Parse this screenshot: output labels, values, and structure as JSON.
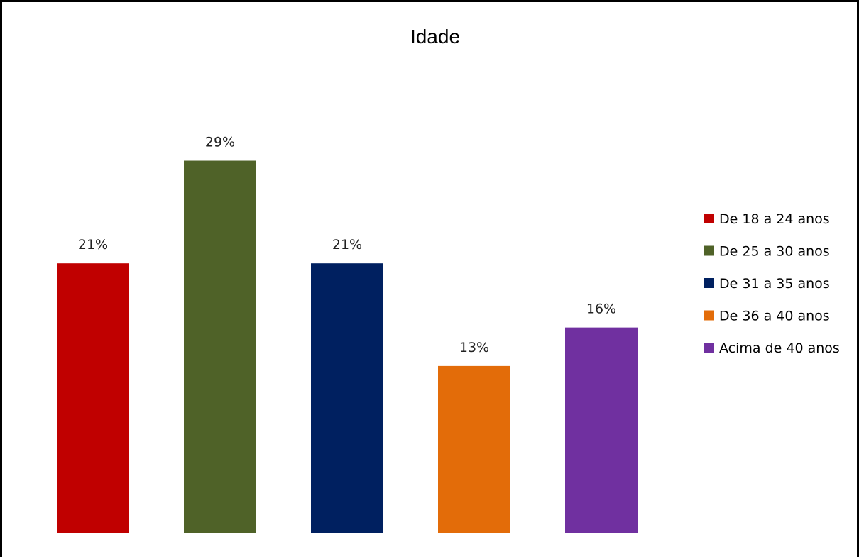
{
  "chart_data": {
    "type": "bar",
    "title": "Idade",
    "categories": [
      "De 18 a 24 anos",
      "De 25 a 30 anos",
      "De 31 a 35 anos",
      "De 36 a 40 anos",
      "Acima de 40 anos"
    ],
    "values": [
      21,
      29,
      21,
      13,
      16
    ],
    "value_labels": [
      "21%",
      "29%",
      "21%",
      "13%",
      "16%"
    ],
    "colors": [
      "#c00000",
      "#4f6228",
      "#002060",
      "#e36c09",
      "#7030a0"
    ],
    "legend": {
      "position": "right",
      "entries": [
        "De 18 a 24 anos",
        "De 25 a 30 anos",
        "De 31 a 35 anos",
        "De 36 a 40 anos",
        "Acima de 40 anos"
      ]
    },
    "grid": false,
    "axes_visible": false,
    "xlabel": "",
    "ylabel": "",
    "ylim": [
      0,
      35
    ]
  }
}
